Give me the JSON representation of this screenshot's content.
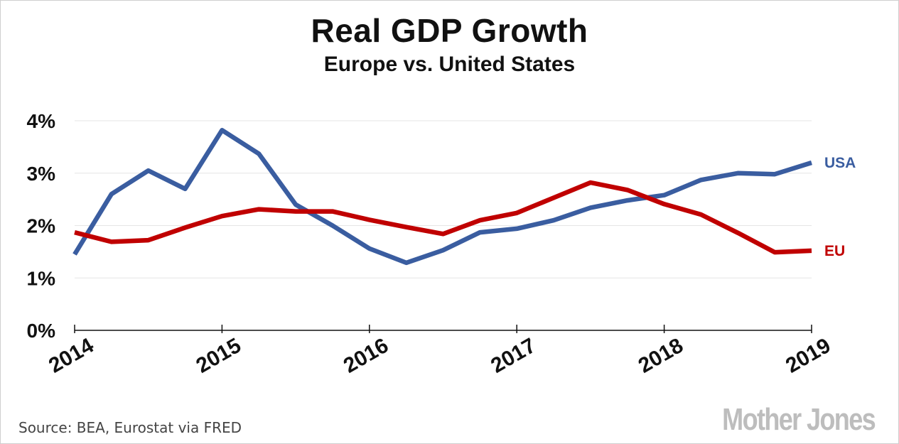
{
  "chart_data": {
    "type": "line",
    "title": "Real GDP Growth",
    "subtitle": "Europe vs. United States",
    "xlabel": "",
    "ylabel": "",
    "x_ticks": [
      "2014",
      "2015",
      "2016",
      "2017",
      "2018",
      "2019"
    ],
    "y_ticks": [
      "0%",
      "1%",
      "2%",
      "3%",
      "4%"
    ],
    "xlim": [
      2014.0,
      2019.0
    ],
    "ylim": [
      0,
      4
    ],
    "grid": true,
    "x": [
      2014.0,
      2014.25,
      2014.5,
      2014.75,
      2015.0,
      2015.25,
      2015.5,
      2015.75,
      2016.0,
      2016.25,
      2016.5,
      2016.75,
      2017.0,
      2017.25,
      2017.5,
      2017.75,
      2018.0,
      2018.25,
      2018.5,
      2018.75,
      2019.0
    ],
    "series": [
      {
        "name": "USA",
        "color": "#3a5da0",
        "values": [
          1.45,
          2.6,
          3.05,
          2.7,
          3.82,
          3.37,
          2.4,
          2.0,
          1.56,
          1.29,
          1.53,
          1.87,
          1.94,
          2.1,
          2.34,
          2.48,
          2.58,
          2.87,
          3.0,
          2.98,
          3.2
        ]
      },
      {
        "name": "EU",
        "color": "#c00000",
        "values": [
          1.87,
          1.69,
          1.72,
          1.96,
          2.18,
          2.31,
          2.27,
          2.27,
          2.11,
          1.97,
          1.84,
          2.1,
          2.24,
          2.53,
          2.82,
          2.68,
          2.41,
          2.21,
          1.86,
          1.49,
          1.52
        ]
      }
    ]
  },
  "source": "Source: BEA, Eurostat via FRED",
  "logo": "Mother Jones"
}
